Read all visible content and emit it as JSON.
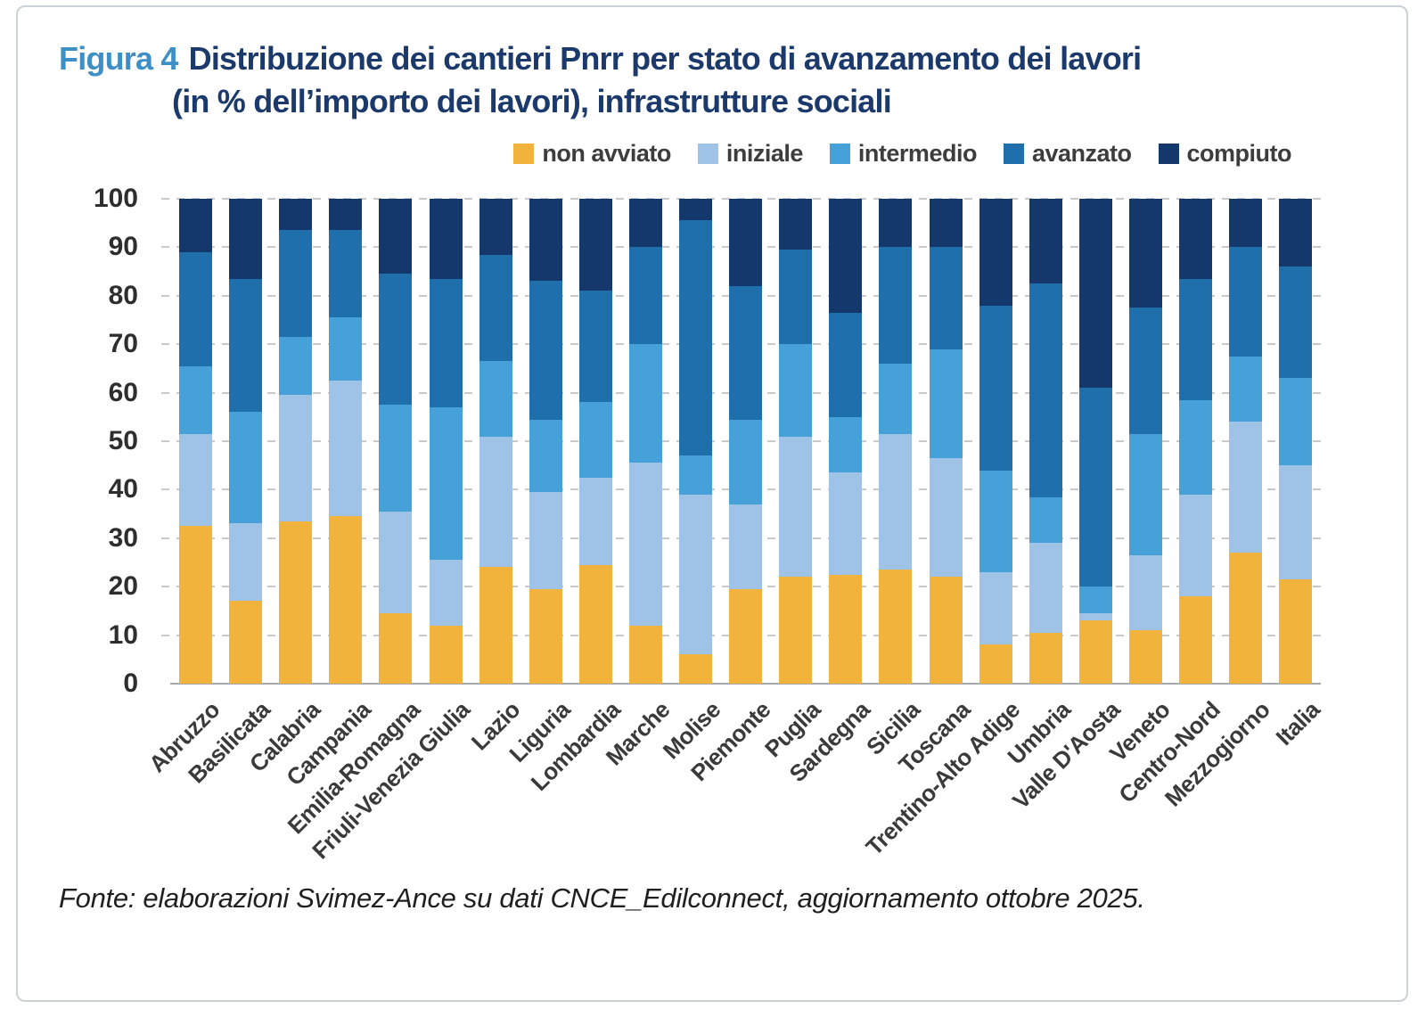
{
  "figure": {
    "label": "Figura 4",
    "title_line1": "Distribuzione dei cantieri Pnrr per stato di avanzamento dei lavori",
    "title_line2": "(in % dell’importo dei lavori), infrastrutture sociali",
    "source": "Fonte: elaborazioni Svimez-Ance su dati CNCE_Edilconnect, aggiornamento ottobre 2025."
  },
  "colors": {
    "non_avviato": "#F2B33D",
    "iniziale": "#9FC3E7",
    "intermedio": "#45A1D8",
    "avanzato": "#1E6FAC",
    "compiuto": "#14386C",
    "gridline": "#C9C9C9",
    "baseline": "#A5A8AB",
    "title_label": "#3E8FC6",
    "title_text": "#1B3A6B"
  },
  "chart_data": {
    "type": "bar",
    "stacked": true,
    "title": "Distribuzione dei cantieri Pnrr per stato di avanzamento dei lavori (in % dell’importo dei lavori), infrastrutture sociali",
    "xlabel": "",
    "ylabel": "",
    "ylim": [
      0,
      100
    ],
    "yticks": [
      0,
      10,
      20,
      30,
      40,
      50,
      60,
      70,
      80,
      90,
      100
    ],
    "grid": "dashed horizontal",
    "legend_position": "top-right",
    "categories": [
      "Abruzzo",
      "Basilicata",
      "Calabria",
      "Campania",
      "Emilia-Romagna",
      "Friuli-Venezia Giulia",
      "Lazio",
      "Liguria",
      "Lombardia",
      "Marche",
      "Molise",
      "Piemonte",
      "Puglia",
      "Sardegna",
      "Sicilia",
      "Toscana",
      "Trentino-Alto Adige",
      "Umbria",
      "Valle D'Aosta",
      "Veneto",
      "Centro-Nord",
      "Mezzogiorno",
      "Italia"
    ],
    "series": [
      {
        "name": "non avviato",
        "color": "#F2B33D",
        "values": [
          32.5,
          17,
          33.5,
          34.5,
          14.5,
          12,
          24,
          19.5,
          24.5,
          12,
          6,
          19.5,
          22,
          22.5,
          23.5,
          22,
          8,
          10.5,
          13,
          11,
          18,
          27,
          21.5
        ]
      },
      {
        "name": "iniziale",
        "color": "#9FC3E7",
        "values": [
          19,
          16,
          26,
          28,
          21,
          13.5,
          27,
          20,
          18,
          33.5,
          33,
          17.5,
          29,
          21,
          28,
          24.5,
          15,
          18.5,
          1.5,
          15.5,
          21,
          27,
          23.5
        ]
      },
      {
        "name": "intermedio",
        "color": "#45A1D8",
        "values": [
          14,
          23,
          12,
          13,
          22,
          31.5,
          15.5,
          15,
          15.5,
          24.5,
          8,
          17.5,
          19,
          11.5,
          14.5,
          22.5,
          21,
          9.5,
          5.5,
          25,
          19.5,
          13.5,
          18
        ]
      },
      {
        "name": "avanzato",
        "color": "#1E6FAC",
        "values": [
          23.5,
          27.5,
          22,
          18,
          27,
          26.5,
          22,
          28.5,
          23,
          20,
          48.5,
          27.5,
          19.5,
          21.5,
          24,
          21,
          34,
          44,
          41,
          26,
          25,
          22.5,
          23
        ]
      },
      {
        "name": "compiuto",
        "color": "#14386C",
        "values": [
          11,
          16.5,
          6.5,
          6.5,
          15.5,
          16.5,
          11.5,
          17,
          19,
          10,
          4.5,
          18,
          10.5,
          23.5,
          10,
          10,
          22,
          17.5,
          39,
          22.5,
          16.5,
          10,
          14
        ]
      }
    ]
  }
}
